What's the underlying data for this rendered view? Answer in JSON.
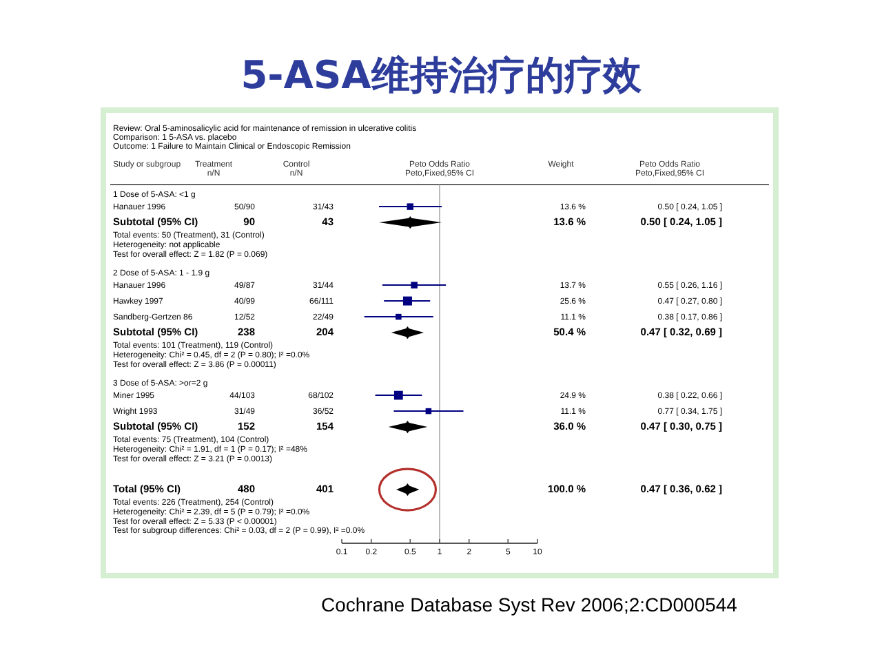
{
  "chart_data": {
    "type": "scatter",
    "orientation": "horizontal",
    "title": "5-ASA维持治疗的疗效",
    "subtitle": "Review: Oral 5-aminosalicylic acid for maintenance of remission in ulcerative colitis\nComparison: 1 5-ASA vs. placebo\nOutcome: 1 Failure to Maintain Clinical or Endoscopic Remission",
    "ylabel": "Study or subgroup",
    "xlabel": "Peto Odds Ratio\nPeto,Fixed,95% CI",
    "categories": [
      "1 Dose of 5-ASA: <1 g",
      "Hanauer 1996",
      "Subtotal (95% CI)",
      "Total events: 50 (Treatment), 31 (Control)",
      "Heterogeneity: not applicable",
      "Test for overall effect: Z = 1.82 (P = 0.069)",
      null,
      "2 Dose of 5-ASA: 1 - 1.9 g",
      "Hanauer 1996",
      "Hawkey 1997",
      "Sandberg-Gertzen 86",
      "Subtotal (95% CI)",
      "Total events: 101 (Treatment), 119 (Control)",
      "Heterogeneity: Chi² = 0.45, df = 2 (P = 0.80); I² =0.0%",
      "Test for overall effect: Z = 3.86 (P = 0.00011)",
      null,
      "3 Dose of 5-ASA: >or=2 g",
      "Miner 1995",
      "Wright 1993",
      "Subtotal (95% CI)",
      "Total events: 75 (Treatment), 104 (Control)",
      "Heterogeneity: Chi² = 1.91, df = 1 (P = 0.17); I² =48%",
      "Test for overall effect: Z = 3.21 (P = 0.0013)",
      null,
      null,
      "Total (95% CI)",
      "Total events: 226 (Treatment), 254 (Control)",
      "Heterogeneity: Chi² = 2.39, df = 5 (P = 0.79); I² =0.0%",
      "Test for overall effect: Z = 5.33 (P < 0.00001)",
      "Test for subgroup differences: Chi² = 0.03, df = 2 (P = 0.99), I² =0.0%"
    ],
    "series": [
      {
        "name": "Treatment\nn/N",
        "type": "other",
        "values": [
          null,
          null,
          null,
          null,
          null,
          null,
          null,
          null,
          null,
          null,
          null,
          null,
          null,
          null,
          null,
          null,
          null,
          null,
          null,
          null,
          null,
          null,
          null,
          null,
          null,
          null,
          null,
          null,
          null,
          null
        ],
        "value_labels": [
          null,
          "50/90",
          "90",
          null,
          null,
          null,
          null,
          null,
          "49/87",
          "40/99",
          "12/52",
          "238",
          null,
          null,
          null,
          null,
          null,
          "44/103",
          "31/49",
          "152",
          null,
          null,
          null,
          null,
          null,
          "480",
          null,
          null,
          null,
          null
        ]
      },
      {
        "name": "Control\nn/N",
        "type": "other",
        "values": [
          null,
          null,
          null,
          null,
          null,
          null,
          null,
          null,
          null,
          null,
          null,
          null,
          null,
          null,
          null,
          null,
          null,
          null,
          null,
          null,
          null,
          null,
          null,
          null,
          null,
          null,
          null,
          null,
          null,
          null
        ],
        "value_labels": [
          null,
          "31/43",
          "43",
          null,
          null,
          null,
          null,
          null,
          "31/44",
          "66/111",
          "22/49",
          "204",
          null,
          null,
          null,
          null,
          null,
          "68/102",
          "36/52",
          "154",
          null,
          null,
          null,
          null,
          null,
          "401",
          null,
          null,
          null,
          null
        ]
      },
      {
        "marker": "square",
        "color": "#000080",
        "values": [
          null,
          0.5,
          null,
          null,
          null,
          null,
          null,
          null,
          0.55,
          0.47,
          0.38,
          null,
          null,
          null,
          null,
          null,
          null,
          0.38,
          0.77,
          null,
          null,
          null,
          null,
          null,
          null,
          null,
          null,
          null,
          null,
          null
        ],
        "errors": [
          null,
          [
            0.24,
            1.05
          ],
          null,
          null,
          null,
          null,
          null,
          null,
          [
            0.26,
            1.16
          ],
          [
            0.27,
            0.8
          ],
          [
            0.17,
            0.86
          ],
          null,
          null,
          null,
          null,
          null,
          null,
          [
            0.22,
            0.66
          ],
          [
            0.34,
            1.75
          ],
          null,
          null,
          null,
          null,
          null,
          null,
          null,
          null,
          null,
          null,
          null
        ],
        "sizes": [
          null,
          0.53,
          null,
          null,
          null,
          null,
          null,
          null,
          0.54,
          1,
          0.43,
          null,
          null,
          null,
          null,
          null,
          null,
          0.97,
          0.43,
          null,
          null,
          null,
          null,
          null,
          null,
          null,
          null,
          null,
          null,
          null
        ]
      },
      {
        "marker": "diamond",
        "color": "#000000",
        "values": [
          null,
          null,
          0.5,
          null,
          null,
          null,
          null,
          null,
          null,
          null,
          null,
          0.47,
          null,
          null,
          null,
          null,
          null,
          null,
          null,
          0.47,
          null,
          null,
          null,
          null,
          null,
          0.47,
          null,
          null,
          null,
          null
        ],
        "errors": [
          null,
          null,
          [
            0.24,
            1.05
          ],
          null,
          null,
          null,
          null,
          null,
          null,
          null,
          null,
          [
            0.32,
            0.69
          ],
          null,
          null,
          null,
          null,
          null,
          null,
          null,
          [
            0.3,
            0.75
          ],
          null,
          null,
          null,
          null,
          null,
          [
            0.36,
            0.62
          ],
          null,
          null,
          null,
          null
        ]
      },
      {
        "name": "Weight",
        "type": "other",
        "values": [
          null,
          null,
          null,
          null,
          null,
          null,
          null,
          null,
          null,
          null,
          null,
          null,
          null,
          null,
          null,
          null,
          null,
          null,
          null,
          null,
          null,
          null,
          null,
          null,
          null,
          null,
          null,
          null,
          null,
          null
        ],
        "value_labels": [
          null,
          "13.6 %",
          "13.6 %",
          null,
          null,
          null,
          null,
          null,
          "13.7 %",
          "25.6 %",
          "11.1 %",
          "50.4 %",
          null,
          null,
          null,
          null,
          null,
          "24.9 %",
          "11.1 %",
          "36.0 %",
          null,
          null,
          null,
          null,
          null,
          "100.0 %",
          null,
          null,
          null,
          null
        ]
      },
      {
        "name": "Peto Odds Ratio\nPeto,Fixed,95% CI",
        "type": "other",
        "values": [
          null,
          null,
          null,
          null,
          null,
          null,
          null,
          null,
          null,
          null,
          null,
          null,
          null,
          null,
          null,
          null,
          null,
          null,
          null,
          null,
          null,
          null,
          null,
          null,
          null,
          null,
          null,
          null,
          null,
          null
        ],
        "value_labels": [
          null,
          "0.50 [ 0.24, 1.05 ]",
          "0.50 [ 0.24, 1.05 ]",
          null,
          null,
          null,
          null,
          null,
          "0.55 [ 0.26, 1.16 ]",
          "0.47 [ 0.27, 0.80 ]",
          "0.38 [ 0.17, 0.86 ]",
          "0.47 [ 0.32, 0.69 ]",
          null,
          null,
          null,
          null,
          null,
          "0.38 [ 0.22, 0.66 ]",
          "0.77 [ 0.34, 1.75 ]",
          "0.47 [ 0.30, 0.75 ]",
          null,
          null,
          null,
          null,
          null,
          "0.47 [ 0.36, 0.62 ]",
          null,
          null,
          null,
          null
        ]
      }
    ],
    "log": "x",
    "xlim": [
      0.1,
      10
    ],
    "xticks": [
      0.1,
      0.2,
      0.5,
      1,
      2,
      5,
      10
    ],
    "ref_lines": [
      {
        "axis": "x",
        "value": 1,
        "color": "#aaaaaa"
      }
    ],
    "annotations": [
      "Cochrane Database Syst Rev 2006;2:CD000544"
    ]
  }
}
